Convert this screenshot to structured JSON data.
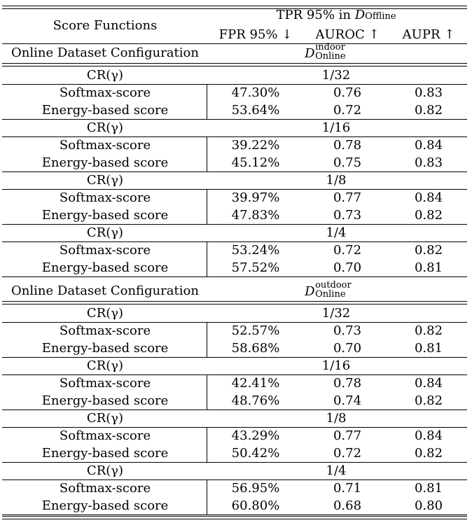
{
  "header": {
    "score_functions": "Score Functions",
    "tpr_prefix": "TPR 95% in ",
    "d_symbol": "D",
    "offline_sub": "Offline",
    "columns": [
      "FPR 95% ↓",
      "AUROC ↑",
      "AUPR ↑"
    ]
  },
  "sections": [
    {
      "config_label": "Online Dataset Configuration",
      "dataset_sup": "indoor",
      "dataset_sub": "Online",
      "groups": [
        {
          "cr_label": "CR(γ)",
          "ratio": "1/32",
          "rows": [
            {
              "name": "Softmax-score",
              "fpr": "47.30%",
              "auroc": "0.76",
              "aupr": "0.83"
            },
            {
              "name": "Energy-based score",
              "fpr": "53.64%",
              "auroc": "0.72",
              "aupr": "0.82"
            }
          ]
        },
        {
          "cr_label": "CR(γ)",
          "ratio": "1/16",
          "rows": [
            {
              "name": "Softmax-score",
              "fpr": "39.22%",
              "auroc": "0.78",
              "aupr": "0.84"
            },
            {
              "name": "Energy-based score",
              "fpr": "45.12%",
              "auroc": "0.75",
              "aupr": "0.83"
            }
          ]
        },
        {
          "cr_label": "CR(γ)",
          "ratio": "1/8",
          "rows": [
            {
              "name": "Softmax-score",
              "fpr": "39.97%",
              "auroc": "0.77",
              "aupr": "0.84"
            },
            {
              "name": "Energy-based score",
              "fpr": "47.83%",
              "auroc": "0.73",
              "aupr": "0.82"
            }
          ]
        },
        {
          "cr_label": "CR(γ)",
          "ratio": "1/4",
          "rows": [
            {
              "name": "Softmax-score",
              "fpr": "53.24%",
              "auroc": "0.72",
              "aupr": "0.82"
            },
            {
              "name": "Energy-based score",
              "fpr": "57.52%",
              "auroc": "0.70",
              "aupr": "0.81"
            }
          ]
        }
      ]
    },
    {
      "config_label": "Online Dataset Configuration",
      "dataset_sup": "outdoor",
      "dataset_sub": "Online",
      "groups": [
        {
          "cr_label": "CR(γ)",
          "ratio": "1/32",
          "rows": [
            {
              "name": "Softmax-score",
              "fpr": "52.57%",
              "auroc": "0.73",
              "aupr": "0.82"
            },
            {
              "name": "Energy-based score",
              "fpr": "58.68%",
              "auroc": "0.70",
              "aupr": "0.81"
            }
          ]
        },
        {
          "cr_label": "CR(γ)",
          "ratio": "1/16",
          "rows": [
            {
              "name": "Softmax-score",
              "fpr": "42.41%",
              "auroc": "0.78",
              "aupr": "0.84"
            },
            {
              "name": "Energy-based score",
              "fpr": "48.76%",
              "auroc": "0.74",
              "aupr": "0.82"
            }
          ]
        },
        {
          "cr_label": "CR(γ)",
          "ratio": "1/8",
          "rows": [
            {
              "name": "Softmax-score",
              "fpr": "43.29%",
              "auroc": "0.77",
              "aupr": "0.84"
            },
            {
              "name": "Energy-based score",
              "fpr": "50.42%",
              "auroc": "0.72",
              "aupr": "0.82"
            }
          ]
        },
        {
          "cr_label": "CR(γ)",
          "ratio": "1/4",
          "rows": [
            {
              "name": "Softmax-score",
              "fpr": "56.95%",
              "auroc": "0.71",
              "aupr": "0.81"
            },
            {
              "name": "Energy-based score",
              "fpr": "60.80%",
              "auroc": "0.68",
              "aupr": "0.80"
            }
          ]
        }
      ]
    }
  ]
}
